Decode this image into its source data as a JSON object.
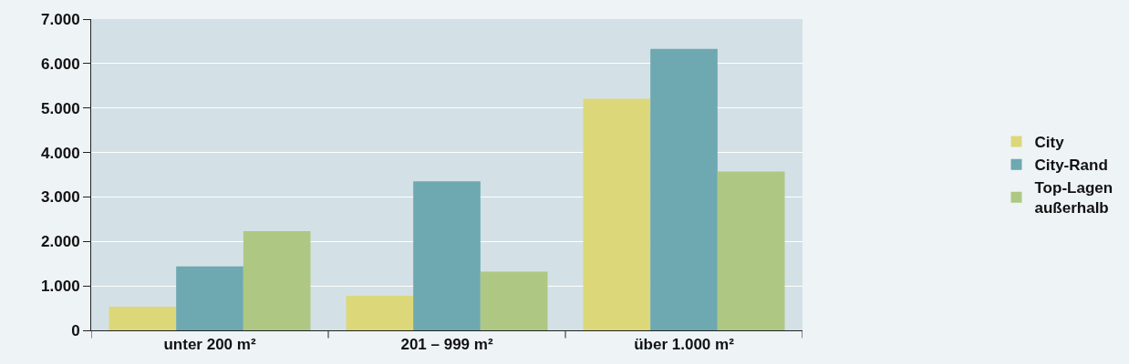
{
  "chart_data": {
    "type": "bar",
    "categories": [
      "unter 200 m²",
      "201 – 999 m²",
      "über 1.000 m²"
    ],
    "series": [
      {
        "name": "City",
        "color": "#dcd87a",
        "values": [
          530,
          780,
          5210
        ]
      },
      {
        "name": "City-Rand",
        "color": "#6ea8b0",
        "values": [
          1440,
          3350,
          6330
        ]
      },
      {
        "name": "Top-Lagen außerhalb",
        "color": "#aec884",
        "values": [
          2230,
          1320,
          3570
        ]
      }
    ],
    "ylim": [
      0,
      7000
    ],
    "yticks": [
      0,
      {
        "value": 1000,
        "label": "1.000"
      },
      {
        "value": 2000,
        "label": "2.000"
      },
      {
        "value": 3000,
        "label": "3.000"
      },
      {
        "value": 4000,
        "label": "4.000"
      },
      {
        "value": 5000,
        "label": "5.000"
      },
      {
        "value": 6000,
        "label": "6.000"
      },
      {
        "value": 7000,
        "label": "7.000"
      }
    ],
    "grid": "y",
    "legend": "right"
  }
}
